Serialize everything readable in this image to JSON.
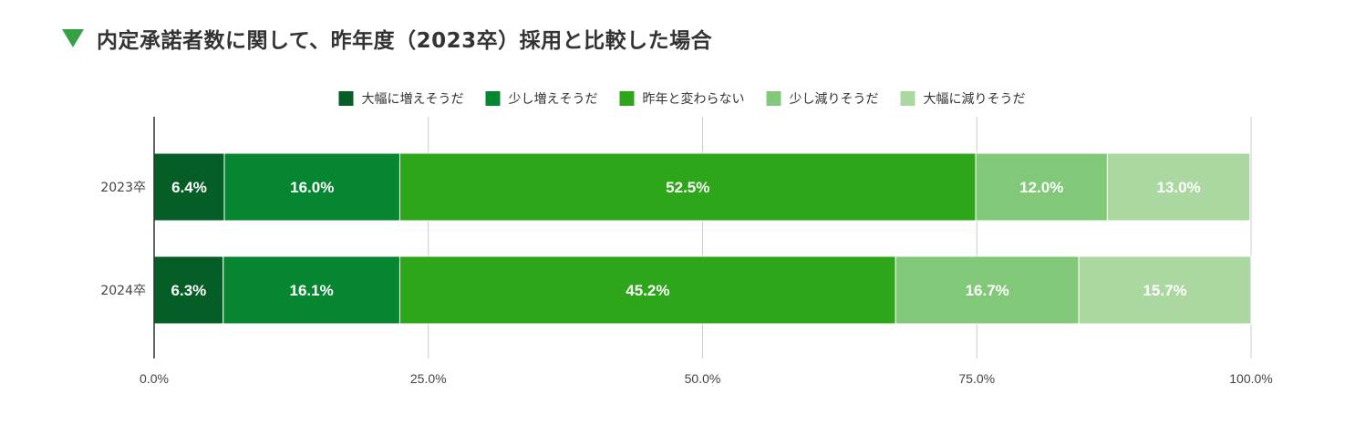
{
  "header": {
    "title": "内定承諾者数に関して、昨年度（2023卒）採用と比較した場合",
    "marker_color": "#35a145",
    "marker_icon": "down-triangle-icon"
  },
  "chart_data": {
    "type": "bar",
    "orientation": "horizontal",
    "stacked": "percent",
    "categories": [
      "2023卒",
      "2024卒"
    ],
    "series": [
      {
        "name": "大幅に増えそうだ",
        "color": "#055e25",
        "values": [
          6.4,
          6.3
        ],
        "labels": [
          "6.4%",
          "6.3%"
        ]
      },
      {
        "name": "少し増えそうだ",
        "color": "#078632",
        "values": [
          16.0,
          16.1
        ],
        "labels": [
          "16.0%",
          "16.1%"
        ]
      },
      {
        "name": "昨年と変わらない",
        "color": "#2ea61a",
        "values": [
          52.5,
          45.2
        ],
        "labels": [
          "52.5%",
          "45.2%"
        ]
      },
      {
        "name": "少し減りそうだ",
        "color": "#81c978",
        "values": [
          12.0,
          16.7
        ],
        "labels": [
          "12.0%",
          "16.7%"
        ]
      },
      {
        "name": "大幅に減りそうだ",
        "color": "#aad8a0",
        "values": [
          13.0,
          15.7
        ],
        "labels": [
          "13.0%",
          "15.7%"
        ]
      }
    ],
    "xlim": [
      0,
      100
    ],
    "xticks": [
      0,
      25,
      50,
      75,
      100
    ],
    "xtick_labels": [
      "0.0%",
      "25.0%",
      "50.0%",
      "75.0%",
      "100.0%"
    ],
    "grid": true,
    "legend_position": "top-center"
  }
}
